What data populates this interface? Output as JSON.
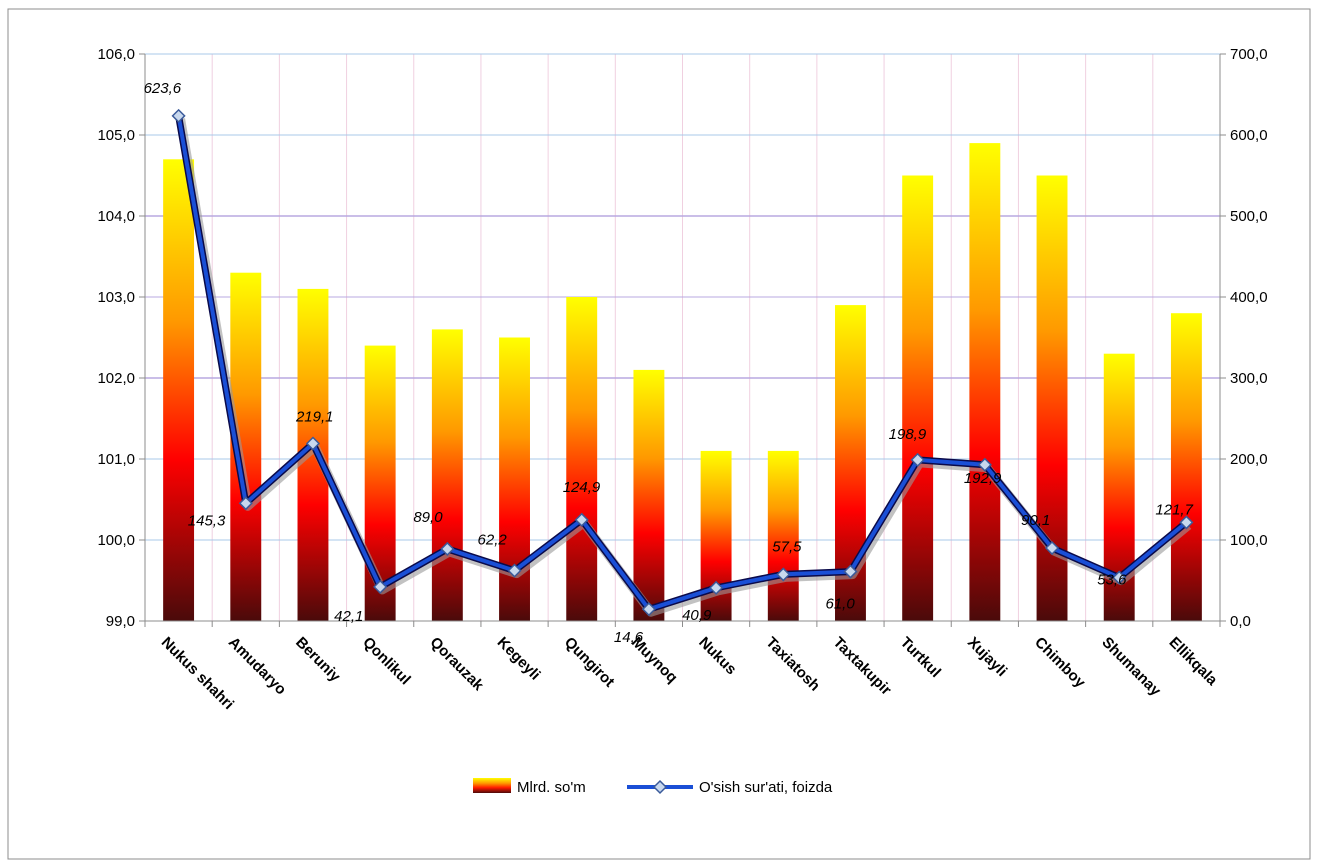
{
  "chart_data": {
    "type": "bar+line",
    "categories": [
      "Nukus shahri",
      "Amudaryo",
      "Beruniy",
      "Qonlikul",
      "Qorauzak",
      "Kegeyli",
      "Qungirot",
      "Muynoq",
      "Nukus",
      "Taxiatosh",
      "Taxtakupir",
      "Turtkul",
      "Xujayli",
      "Chimboy",
      "Shumanay",
      "Ellikqala"
    ],
    "series": [
      {
        "name": "Mlrd. so'm",
        "type": "bar",
        "axis": "left",
        "values": [
          104.7,
          103.3,
          103.1,
          102.4,
          102.6,
          102.5,
          103.0,
          102.1,
          101.1,
          101.1,
          102.9,
          104.5,
          104.9,
          104.5,
          102.3,
          102.8
        ]
      },
      {
        "name": "O'sish sur'ati, foizda",
        "type": "line",
        "axis": "right",
        "values": [
          623.6,
          145.3,
          219.1,
          42.1,
          89.0,
          62.2,
          124.9,
          14.6,
          40.9,
          57.5,
          61.0,
          198.9,
          192.9,
          90.1,
          53.6,
          121.7
        ],
        "labels": [
          "623,6",
          "145,3",
          "219,1",
          "42,1",
          "89,0",
          "62,2",
          "124,9",
          "14,6",
          "40,9",
          "57,5",
          "61,0",
          "198,9",
          "192,9",
          "90,1",
          "53,6",
          "121,7"
        ]
      }
    ],
    "left_axis": {
      "min": 99.0,
      "max": 106.0,
      "step": 1.0,
      "tick_labels": [
        "99,0",
        "100,0",
        "101,0",
        "102,0",
        "103,0",
        "104,0",
        "105,0",
        "106,0"
      ]
    },
    "right_axis": {
      "min": 0,
      "max": 700,
      "step": 100,
      "tick_labels": [
        "0,0",
        "100,0",
        "200,0",
        "300,0",
        "400,0",
        "500,0",
        "600,0",
        "700,0"
      ]
    },
    "grid": true,
    "legend_position": "bottom",
    "colors": {
      "bar_top": "#ffff00",
      "bar_mid": "#ff9900",
      "bar_low": "#ff0000",
      "bar_bottom": "#4a0a0a",
      "line": "#1a4fd6",
      "line_dark": "#0a0a4a",
      "marker_fill": "#c8d8ee",
      "grid_blue": "#a8c8e8",
      "grid_purple": "#b8a8e0",
      "grid_pink": "#f0d0e0"
    }
  }
}
